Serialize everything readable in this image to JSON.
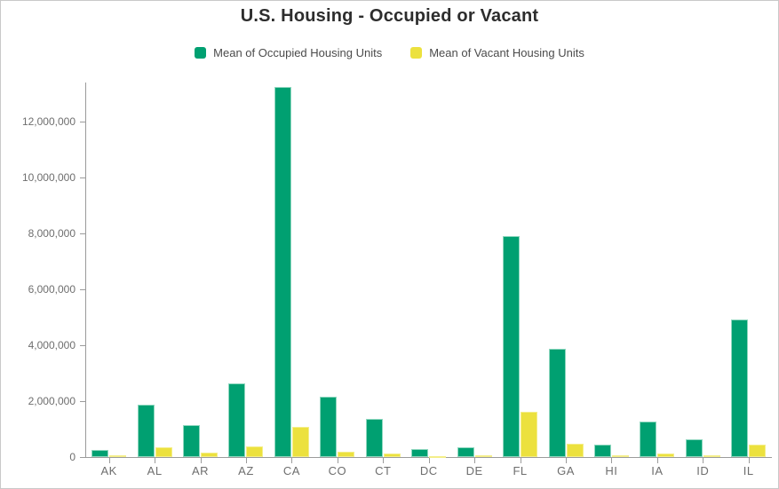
{
  "window": {
    "background": "#ffffff",
    "frame_border_color": "#c9c9c9"
  },
  "title": "U.S. Housing - Occupied or Vacant",
  "legend": {
    "items": [
      {
        "label": "Mean of Occupied Housing Units",
        "color": "#00a071"
      },
      {
        "label": "Mean of Vacant Housing Units",
        "color": "#ece13e"
      }
    ]
  },
  "chart_data": {
    "type": "bar",
    "title": "U.S. Housing - Occupied or Vacant",
    "xlabel": "",
    "ylabel": "",
    "legend_position": "top",
    "grid": false,
    "axis_color": "#9b9b9b",
    "tick_label_color": "#6e6e6e",
    "ylim": [
      0,
      13300000
    ],
    "y_ticks": [
      {
        "value": 0,
        "label": "0"
      },
      {
        "value": 2000000,
        "label": "2,000,000"
      },
      {
        "value": 4000000,
        "label": "4,000,000"
      },
      {
        "value": 6000000,
        "label": "6,000,000"
      },
      {
        "value": 8000000,
        "label": "8,000,000"
      },
      {
        "value": 10000000,
        "label": "10,000,000"
      },
      {
        "value": 12000000,
        "label": "12,000,000"
      }
    ],
    "categories": [
      "AK",
      "AL",
      "AR",
      "AZ",
      "CA",
      "CO",
      "CT",
      "DC",
      "DE",
      "FL",
      "GA",
      "HI",
      "IA",
      "ID",
      "IL"
    ],
    "series": [
      {
        "name": "Mean of Occupied Housing Units",
        "key": "occupied",
        "color": "#00a071",
        "border_color": "#8fd7bf",
        "values": [
          240000,
          1880000,
          1140000,
          2620000,
          13250000,
          2150000,
          1350000,
          270000,
          355000,
          7900000,
          3860000,
          455000,
          1270000,
          625000,
          4920000
        ]
      },
      {
        "name": "Mean of Vacant Housing Units",
        "key": "vacant",
        "color": "#ece13e",
        "border_color": "#f4ee8a",
        "values": [
          55000,
          350000,
          170000,
          370000,
          1090000,
          190000,
          115000,
          32000,
          55000,
          1620000,
          475000,
          55000,
          125000,
          73000,
          455000
        ]
      }
    ]
  }
}
